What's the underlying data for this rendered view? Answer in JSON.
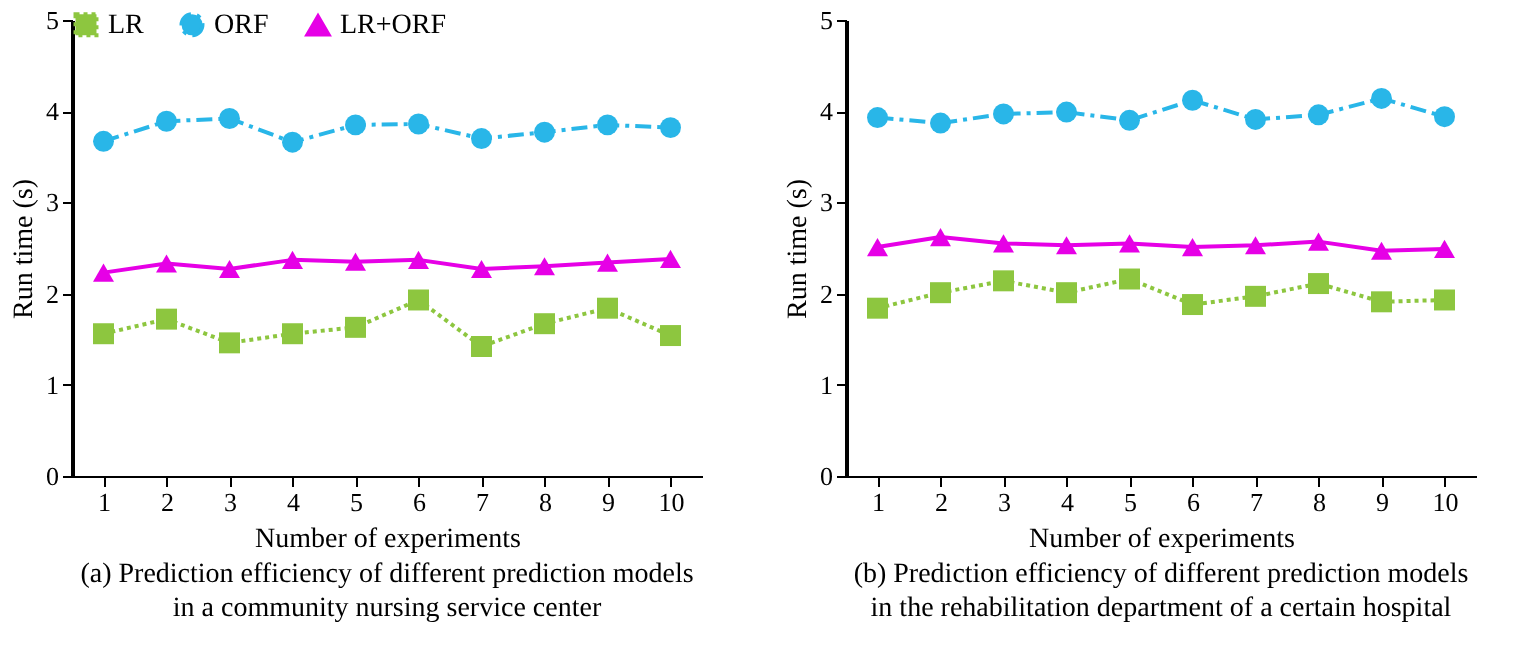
{
  "chart_data": [
    {
      "type": "line",
      "xlabel": "Number of experiments",
      "ylabel": "Run time (s)",
      "categories": [
        "1",
        "2",
        "3",
        "4",
        "5",
        "6",
        "7",
        "8",
        "9",
        "10"
      ],
      "ylim": [
        0,
        5
      ],
      "yticks": [
        0,
        1,
        2,
        3,
        4,
        5
      ],
      "grid": false,
      "legend": "top",
      "annotations": [
        "(a) Prediction efficiency of different prediction models in a community nursing service center"
      ],
      "series": [
        {
          "name": "LR",
          "color": "#8dc63f",
          "marker": "square",
          "line_style": "dotted",
          "values": [
            1.56,
            1.72,
            1.46,
            1.56,
            1.63,
            1.93,
            1.42,
            1.67,
            1.84,
            1.54
          ]
        },
        {
          "name": "ORF",
          "color": "#29b6e8",
          "marker": "circle",
          "line_style": "dashdot",
          "values": [
            3.67,
            3.89,
            3.92,
            3.66,
            3.85,
            3.86,
            3.7,
            3.77,
            3.85,
            3.82
          ]
        },
        {
          "name": "LR+ORF",
          "color": "#e600e6",
          "marker": "triangle",
          "line_style": "solid",
          "values": [
            2.23,
            2.33,
            2.27,
            2.37,
            2.35,
            2.37,
            2.27,
            2.3,
            2.34,
            2.38
          ]
        }
      ]
    },
    {
      "type": "line",
      "xlabel": "Number of experiments",
      "ylabel": "Run time (s)",
      "categories": [
        "1",
        "2",
        "3",
        "4",
        "5",
        "6",
        "7",
        "8",
        "9",
        "10"
      ],
      "ylim": [
        0,
        5
      ],
      "yticks": [
        0,
        1,
        2,
        3,
        4,
        5
      ],
      "grid": false,
      "legend": "top",
      "annotations": [
        "(b) Prediction efficiency of different prediction models in the rehabilitation department of a certain hospital"
      ],
      "series": [
        {
          "name": "LR",
          "color": "#8dc63f",
          "marker": "square",
          "line_style": "dotted",
          "values": [
            1.84,
            2.01,
            2.14,
            2.01,
            2.16,
            1.88,
            1.97,
            2.11,
            1.91,
            1.93
          ]
        },
        {
          "name": "ORF",
          "color": "#29b6e8",
          "marker": "circle",
          "line_style": "dashdot",
          "values": [
            3.93,
            3.87,
            3.97,
            3.99,
            3.9,
            4.12,
            3.91,
            3.96,
            4.14,
            3.94
          ]
        },
        {
          "name": "LR+ORF",
          "color": "#e600e6",
          "marker": "triangle",
          "line_style": "solid",
          "values": [
            2.51,
            2.62,
            2.55,
            2.53,
            2.55,
            2.51,
            2.53,
            2.57,
            2.47,
            2.49
          ]
        }
      ]
    }
  ]
}
